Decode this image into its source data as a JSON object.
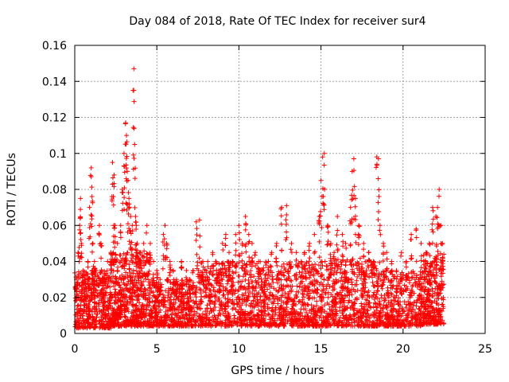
{
  "chart_data": {
    "type": "scatter",
    "title": "Day 084 of 2018, Rate Of TEC Index for receiver sur4",
    "xlabel": "GPS time / hours",
    "ylabel": "ROTI / TECUs",
    "xlim": [
      0,
      25
    ],
    "ylim": [
      0,
      0.16
    ],
    "xticks": [
      0,
      5,
      10,
      15,
      20,
      25
    ],
    "xtick_labels": [
      "0",
      "5",
      "10",
      "15",
      "20",
      "25"
    ],
    "yticks": [
      0,
      0.02,
      0.04,
      0.06,
      0.08,
      0.1,
      0.12,
      0.14,
      0.16
    ],
    "ytick_labels": [
      "0",
      "0.02",
      "0.04",
      "0.06",
      "0.08",
      "0.1",
      "0.12",
      "0.14",
      "0.16"
    ],
    "grid": true,
    "marker": "+",
    "color": "#ff0000",
    "series": [
      {
        "name": "ROTI",
        "x": [
          0.1,
          0.2,
          0.3,
          0.35,
          0.4,
          0.5,
          0.6,
          0.7,
          0.8,
          0.9,
          1.0,
          1.05,
          1.1,
          1.2,
          1.3,
          1.5,
          1.6,
          1.7,
          1.8,
          1.9,
          2.0,
          2.2,
          2.3,
          2.35,
          2.4,
          2.45,
          2.5,
          2.6,
          2.8,
          2.9,
          3.0,
          3.1,
          3.15,
          3.2,
          3.25,
          3.3,
          3.4,
          3.5,
          3.55,
          3.6,
          3.65,
          3.7,
          3.75,
          3.8,
          3.9,
          4.0,
          4.2,
          4.4,
          4.6,
          4.8,
          5.0,
          5.2,
          5.4,
          5.5,
          5.6,
          5.8,
          6.0,
          6.2,
          6.5,
          6.8,
          7.0,
          7.2,
          7.4,
          7.6,
          7.8,
          8.0,
          8.2,
          8.4,
          8.6,
          8.8,
          9.0,
          9.2,
          9.4,
          9.6,
          9.8,
          10.0,
          10.2,
          10.4,
          10.6,
          10.8,
          11.0,
          11.2,
          11.5,
          11.8,
          12.0,
          12.3,
          12.6,
          12.9,
          13.2,
          13.5,
          13.8,
          14.0,
          14.3,
          14.6,
          14.9,
          15.0,
          15.1,
          15.2,
          15.4,
          15.6,
          15.8,
          16.0,
          16.3,
          16.5,
          16.8,
          16.9,
          17.0,
          17.1,
          17.3,
          17.6,
          17.9,
          18.2,
          18.4,
          18.5,
          18.6,
          18.8,
          19.0,
          19.3,
          19.6,
          19.9,
          20.2,
          20.5,
          20.8,
          21.1,
          21.4,
          21.6,
          21.8,
          22.0,
          22.1,
          22.2,
          22.3,
          22.4
        ],
        "values": [
          0.03,
          0.045,
          0.06,
          0.075,
          0.05,
          0.035,
          0.028,
          0.025,
          0.04,
          0.07,
          0.092,
          0.076,
          0.05,
          0.04,
          0.035,
          0.06,
          0.05,
          0.03,
          0.028,
          0.03,
          0.04,
          0.045,
          0.095,
          0.076,
          0.088,
          0.06,
          0.04,
          0.05,
          0.06,
          0.08,
          0.1,
          0.117,
          0.11,
          0.09,
          0.085,
          0.075,
          0.065,
          0.06,
          0.135,
          0.147,
          0.105,
          0.065,
          0.06,
          0.05,
          0.04,
          0.045,
          0.05,
          0.06,
          0.05,
          0.04,
          0.035,
          0.03,
          0.055,
          0.06,
          0.05,
          0.04,
          0.035,
          0.03,
          0.04,
          0.035,
          0.03,
          0.035,
          0.062,
          0.063,
          0.04,
          0.035,
          0.03,
          0.045,
          0.04,
          0.035,
          0.05,
          0.055,
          0.045,
          0.04,
          0.055,
          0.06,
          0.05,
          0.065,
          0.055,
          0.05,
          0.045,
          0.04,
          0.035,
          0.04,
          0.045,
          0.05,
          0.07,
          0.071,
          0.05,
          0.045,
          0.04,
          0.045,
          0.05,
          0.055,
          0.065,
          0.085,
          0.098,
          0.1,
          0.06,
          0.05,
          0.045,
          0.065,
          0.055,
          0.05,
          0.07,
          0.09,
          0.097,
          0.075,
          0.06,
          0.05,
          0.045,
          0.04,
          0.098,
          0.097,
          0.06,
          0.05,
          0.045,
          0.04,
          0.035,
          0.045,
          0.04,
          0.055,
          0.058,
          0.05,
          0.045,
          0.05,
          0.07,
          0.065,
          0.07,
          0.08,
          0.06,
          0.05
        ]
      }
    ],
    "bands": [
      {
        "x_start": 0.0,
        "x_end": 2.2,
        "y_min": 0.003,
        "y_max": 0.035,
        "count": 420
      },
      {
        "x_start": 2.2,
        "x_end": 4.6,
        "y_min": 0.004,
        "y_max": 0.045,
        "count": 560
      },
      {
        "x_start": 4.6,
        "x_end": 7.4,
        "y_min": 0.004,
        "y_max": 0.03,
        "count": 460
      },
      {
        "x_start": 7.4,
        "x_end": 12.6,
        "y_min": 0.004,
        "y_max": 0.04,
        "count": 760
      },
      {
        "x_start": 12.6,
        "x_end": 15.6,
        "y_min": 0.004,
        "y_max": 0.04,
        "count": 460
      },
      {
        "x_start": 15.6,
        "x_end": 18.4,
        "y_min": 0.004,
        "y_max": 0.042,
        "count": 460
      },
      {
        "x_start": 18.4,
        "x_end": 21.2,
        "y_min": 0.004,
        "y_max": 0.035,
        "count": 440
      },
      {
        "x_start": 21.2,
        "x_end": 22.5,
        "y_min": 0.005,
        "y_max": 0.045,
        "count": 300
      }
    ]
  }
}
